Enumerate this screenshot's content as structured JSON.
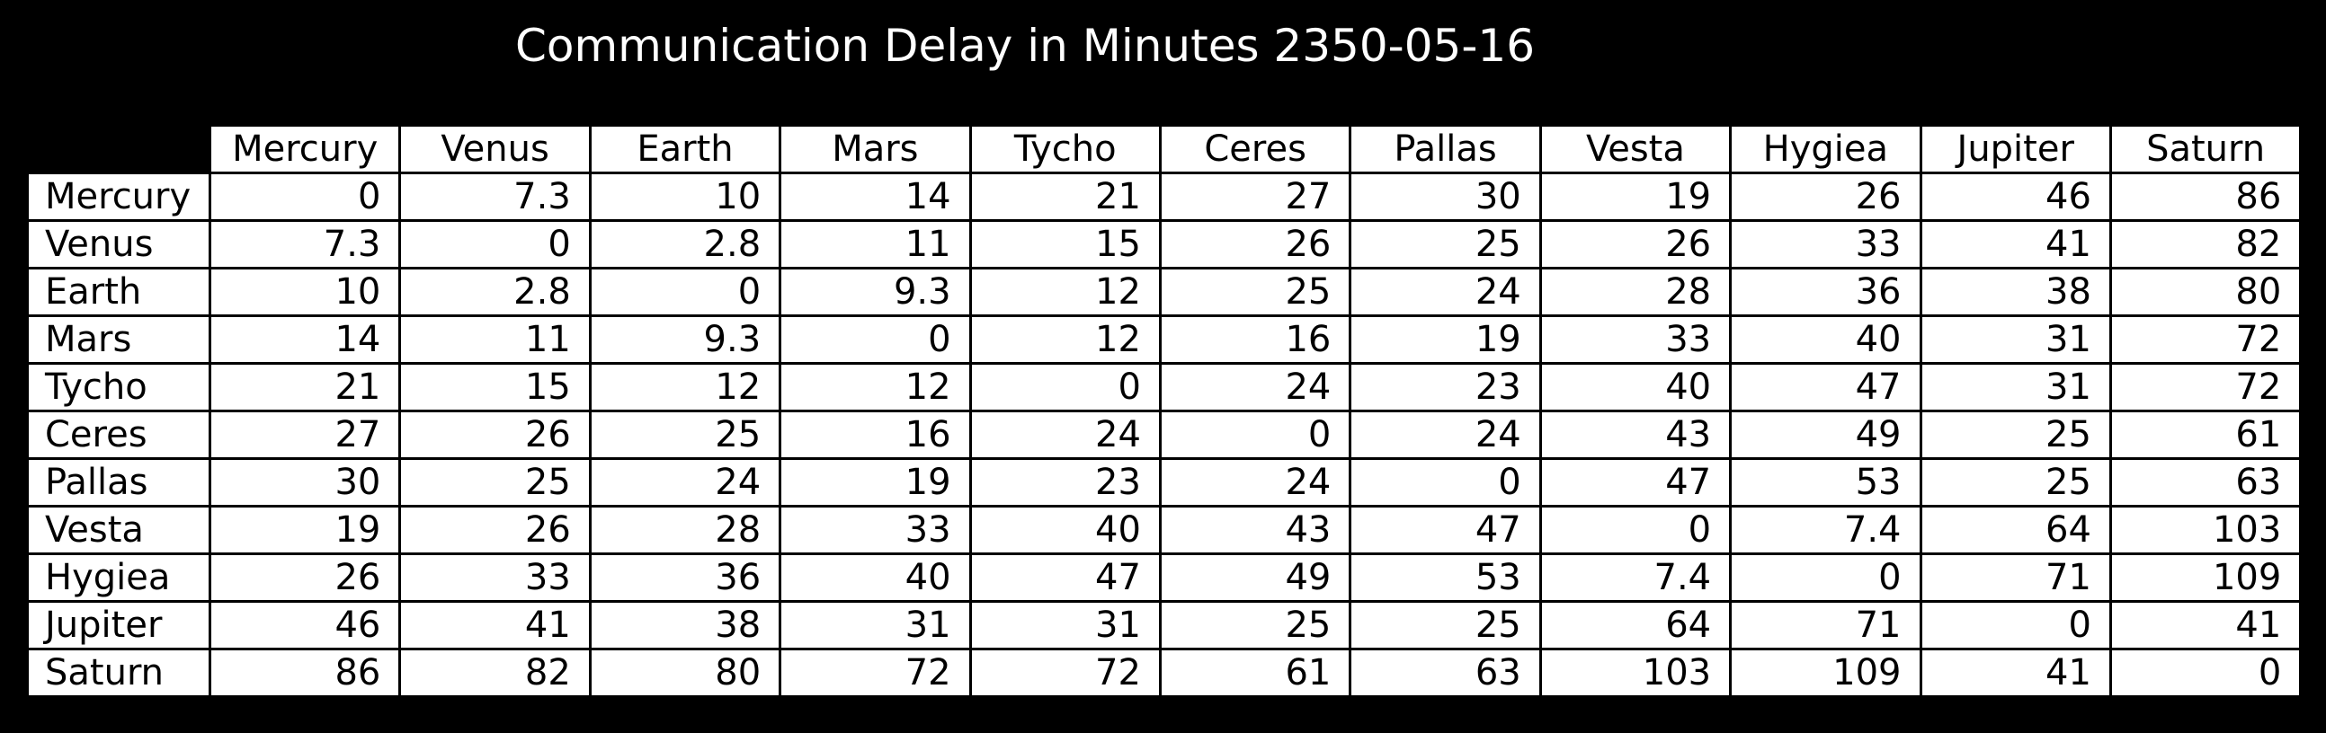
{
  "chart_data": {
    "type": "table",
    "title": "Communication Delay in Minutes 2350-05-16",
    "columns": [
      "Mercury",
      "Venus",
      "Earth",
      "Mars",
      "Tycho",
      "Ceres",
      "Pallas",
      "Vesta",
      "Hygiea",
      "Jupiter",
      "Saturn"
    ],
    "rows": [
      {
        "label": "Mercury",
        "values": [
          "0",
          "7.3",
          "10",
          "14",
          "21",
          "27",
          "30",
          "19",
          "26",
          "46",
          "86"
        ]
      },
      {
        "label": "Venus",
        "values": [
          "7.3",
          "0",
          "2.8",
          "11",
          "15",
          "26",
          "25",
          "26",
          "33",
          "41",
          "82"
        ]
      },
      {
        "label": "Earth",
        "values": [
          "10",
          "2.8",
          "0",
          "9.3",
          "12",
          "25",
          "24",
          "28",
          "36",
          "38",
          "80"
        ]
      },
      {
        "label": "Mars",
        "values": [
          "14",
          "11",
          "9.3",
          "0",
          "12",
          "16",
          "19",
          "33",
          "40",
          "31",
          "72"
        ]
      },
      {
        "label": "Tycho",
        "values": [
          "21",
          "15",
          "12",
          "12",
          "0",
          "24",
          "23",
          "40",
          "47",
          "31",
          "72"
        ]
      },
      {
        "label": "Ceres",
        "values": [
          "27",
          "26",
          "25",
          "16",
          "24",
          "0",
          "24",
          "43",
          "49",
          "25",
          "61"
        ]
      },
      {
        "label": "Pallas",
        "values": [
          "30",
          "25",
          "24",
          "19",
          "23",
          "24",
          "0",
          "47",
          "53",
          "25",
          "63"
        ]
      },
      {
        "label": "Vesta",
        "values": [
          "19",
          "26",
          "28",
          "33",
          "40",
          "43",
          "47",
          "0",
          "7.4",
          "64",
          "103"
        ]
      },
      {
        "label": "Hygiea",
        "values": [
          "26",
          "33",
          "36",
          "40",
          "47",
          "49",
          "53",
          "7.4",
          "0",
          "71",
          "109"
        ]
      },
      {
        "label": "Jupiter",
        "values": [
          "46",
          "41",
          "38",
          "31",
          "31",
          "25",
          "25",
          "64",
          "71",
          "0",
          "41"
        ]
      },
      {
        "label": "Saturn",
        "values": [
          "86",
          "82",
          "80",
          "72",
          "72",
          "61",
          "63",
          "103",
          "109",
          "41",
          "0"
        ]
      }
    ]
  },
  "colors": {
    "background": "#000000",
    "title_text": "#ffffff",
    "cell_background": "#ffffff",
    "cell_text": "#000000",
    "cell_border": "#000000"
  }
}
